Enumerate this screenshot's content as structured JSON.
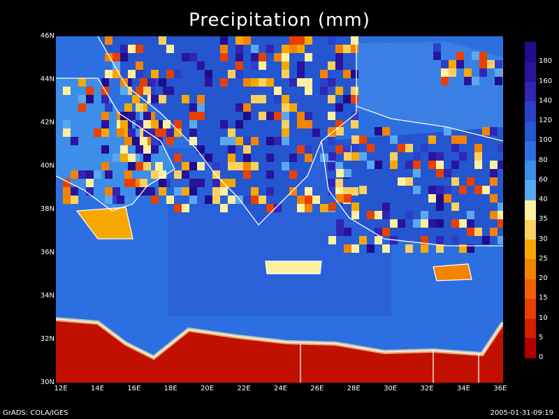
{
  "title": "Precipitation (mm)",
  "lat_labels": [
    "46N",
    "44N",
    "42N",
    "40N",
    "38N",
    "36N",
    "34N",
    "32N",
    "30N"
  ],
  "lon_labels": [
    "12E",
    "14E",
    "16E",
    "18E",
    "20E",
    "22E",
    "24E",
    "26E",
    "28E",
    "30E",
    "32E",
    "34E",
    "36E"
  ],
  "colorbar": {
    "labels": [
      "0",
      "5",
      "10",
      "15",
      "20",
      "25",
      "30",
      "35",
      "40",
      "60",
      "80",
      "100",
      "120",
      "140",
      "160",
      "180"
    ],
    "colors": [
      "#b20000",
      "#d42000",
      "#e84000",
      "#f06000",
      "#f38400",
      "#f6a800",
      "#fbd060",
      "#fdf0a0",
      "#5aa8f0",
      "#3c8ee8",
      "#2c6fe0",
      "#2456d0",
      "#2b40c8",
      "#3224b4",
      "#2a149c",
      "#200c8c"
    ]
  },
  "footer": {
    "left": "GrADS: COLA/IGES",
    "right": "2005-01-31-09:19"
  }
}
